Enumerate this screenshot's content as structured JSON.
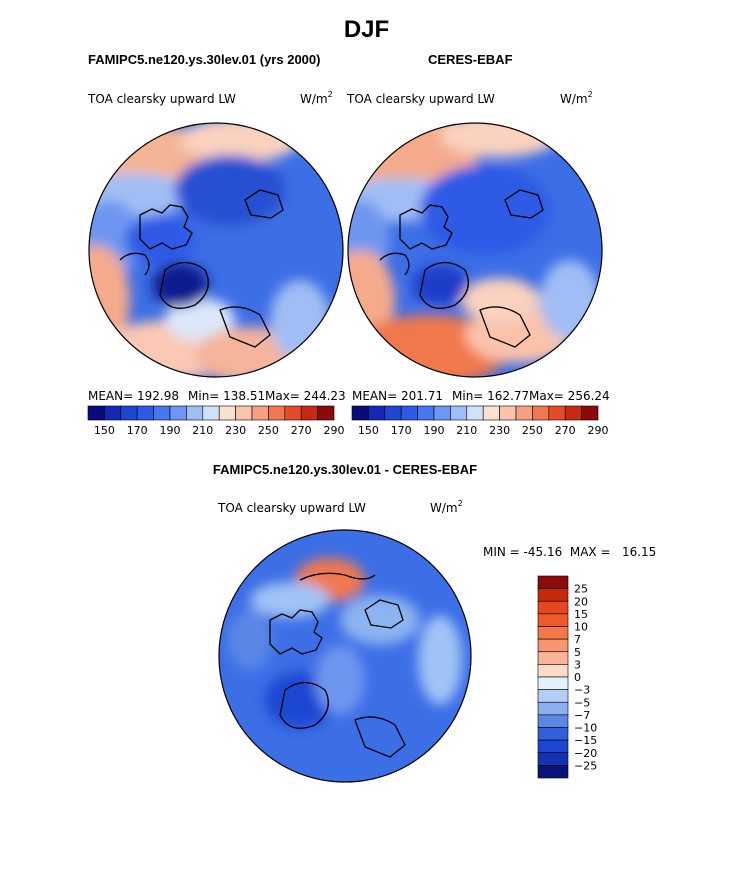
{
  "title": "DJF",
  "panels": [
    {
      "title": "FAMIPC5.ne120.ys.30lev.01 (yrs 2000)",
      "left_label": "TOA clearsky upward LW",
      "units": "W/m",
      "units_sup": "2",
      "stats": {
        "mean": "MEAN= 192.98",
        "min": "Min= 138.51",
        "max": "Max= 244.23"
      }
    },
    {
      "title": "CERES-EBAF",
      "left_label": "TOA clearsky upward LW",
      "units": "W/m",
      "units_sup": "2",
      "stats": {
        "mean": "MEAN= 201.71",
        "min": "Min= 162.77",
        "max": "Max= 256.24"
      }
    }
  ],
  "diff": {
    "title": "FAMIPC5.ne120.ys.30lev.01 - CERES-EBAF",
    "left_label": "TOA clearsky upward LW",
    "units": "W/m",
    "units_sup": "2",
    "minmax": "MIN = -45.16  MAX =   16.15"
  },
  "chart_data": [
    {
      "type": "heatmap",
      "projection": "north-polar-stereographic",
      "title": "FAMIPC5.ne120.ys.30lev.01 (yrs 2000)",
      "variable": "TOA clearsky upward LW",
      "units": "W/m2",
      "mean": 192.98,
      "min": 138.51,
      "max": 244.23,
      "colorbar": {
        "orientation": "horizontal",
        "tick_labels": [
          150,
          170,
          190,
          210,
          230,
          250,
          270,
          290
        ],
        "colors": [
          "#0a0a7a",
          "#1428b4",
          "#1e46d2",
          "#2d5ae6",
          "#4678f0",
          "#6e96f5",
          "#a0bef5",
          "#d2e1fa",
          "#fae1d2",
          "#fac3aa",
          "#f5a082",
          "#f07850",
          "#e64b28",
          "#c82814",
          "#8c0a0a"
        ]
      }
    },
    {
      "type": "heatmap",
      "projection": "north-polar-stereographic",
      "title": "CERES-EBAF",
      "variable": "TOA clearsky upward LW",
      "units": "W/m2",
      "mean": 201.71,
      "min": 162.77,
      "max": 256.24,
      "colorbar": {
        "orientation": "horizontal",
        "tick_labels": [
          150,
          170,
          190,
          210,
          230,
          250,
          270,
          290
        ],
        "colors": [
          "#0a0a7a",
          "#1428b4",
          "#1e46d2",
          "#2d5ae6",
          "#4678f0",
          "#6e96f5",
          "#a0bef5",
          "#d2e1fa",
          "#fae1d2",
          "#fac3aa",
          "#f5a082",
          "#f07850",
          "#e64b28",
          "#c82814",
          "#8c0a0a"
        ]
      }
    },
    {
      "type": "heatmap",
      "projection": "north-polar-stereographic",
      "title": "FAMIPC5.ne120.ys.30lev.01 - CERES-EBAF",
      "variable": "TOA clearsky upward LW",
      "units": "W/m2",
      "min": -45.16,
      "max": 16.15,
      "colorbar": {
        "orientation": "vertical",
        "tick_labels": [
          25,
          20,
          15,
          10,
          7,
          5,
          3,
          0,
          -3,
          -5,
          -7,
          -10,
          -15,
          -20,
          -25
        ],
        "colors": [
          "#8c0a0a",
          "#c8280a",
          "#e6461e",
          "#f05a28",
          "#f57846",
          "#f5966e",
          "#fab496",
          "#fadcc8",
          "#e6f0fa",
          "#b4cdf5",
          "#8caff0",
          "#5a87e6",
          "#325fdc",
          "#1e46d2",
          "#1432b4",
          "#0a1478"
        ]
      }
    }
  ]
}
